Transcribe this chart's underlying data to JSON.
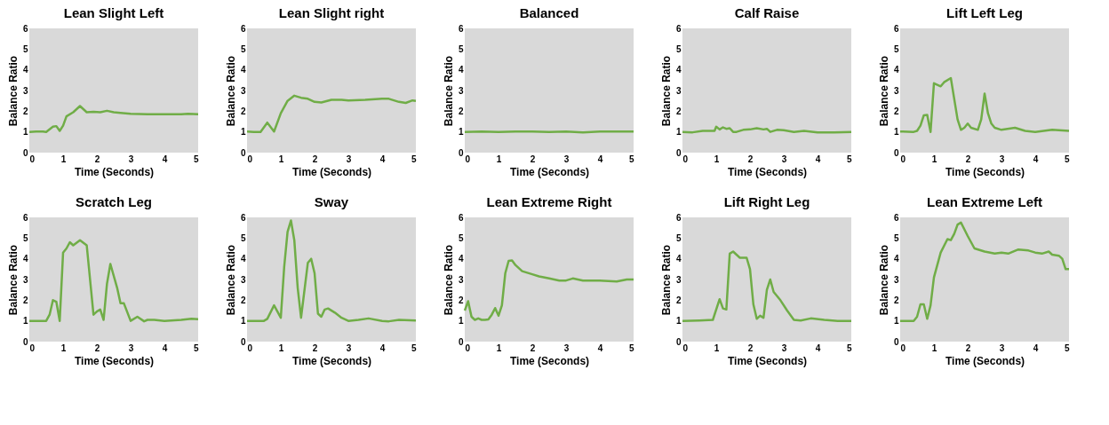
{
  "chart_data": [
    {
      "type": "line",
      "title": "Lean Slight Left",
      "xlabel": "Time (Seconds)",
      "ylabel": "Balance Ratio",
      "xlim": [
        0,
        5
      ],
      "xticks": [
        0,
        1,
        2,
        3,
        4,
        5
      ],
      "ylim": [
        0,
        6
      ],
      "yticks": [
        0,
        1,
        2,
        3,
        4,
        5,
        6
      ],
      "grid": false,
      "marker": "none",
      "line_style": "solid",
      "series": [
        {
          "color": "#70ad47",
          "x": [
            0,
            0.2,
            0.4,
            0.5,
            0.7,
            0.8,
            0.9,
            1.0,
            1.1,
            1.3,
            1.5,
            1.7,
            1.9,
            2.1,
            2.3,
            2.5,
            2.7,
            3.0,
            3.5,
            4.0,
            4.5,
            4.7,
            5.0
          ],
          "values": [
            1.0,
            1.02,
            1.02,
            1.0,
            1.25,
            1.28,
            1.05,
            1.3,
            1.75,
            1.95,
            2.25,
            1.95,
            1.97,
            1.95,
            2.02,
            1.95,
            1.92,
            1.88,
            1.85,
            1.85,
            1.85,
            1.87,
            1.85
          ]
        }
      ]
    },
    {
      "type": "line",
      "title": "Lean Slight right",
      "xlabel": "Time (Seconds)",
      "ylabel": "Balance Ratio",
      "xlim": [
        0,
        5
      ],
      "xticks": [
        0,
        1,
        2,
        3,
        4,
        5
      ],
      "ylim": [
        0,
        6
      ],
      "yticks": [
        0,
        1,
        2,
        3,
        4,
        5,
        6
      ],
      "grid": false,
      "marker": "none",
      "line_style": "solid",
      "series": [
        {
          "color": "#70ad47",
          "x": [
            0,
            0.2,
            0.4,
            0.6,
            0.8,
            1.0,
            1.2,
            1.4,
            1.6,
            1.8,
            2.0,
            2.2,
            2.5,
            2.8,
            3.0,
            3.5,
            4.0,
            4.2,
            4.5,
            4.7,
            4.9,
            5.0
          ],
          "values": [
            1.02,
            1.0,
            1.0,
            1.45,
            1.02,
            1.9,
            2.5,
            2.75,
            2.65,
            2.6,
            2.45,
            2.42,
            2.55,
            2.55,
            2.52,
            2.55,
            2.6,
            2.6,
            2.45,
            2.4,
            2.52,
            2.5
          ]
        }
      ]
    },
    {
      "type": "line",
      "title": "Balanced",
      "xlabel": "Time (Seconds)",
      "ylabel": "Balance Ratio",
      "xlim": [
        0,
        5
      ],
      "xticks": [
        0,
        1,
        2,
        3,
        4,
        5
      ],
      "ylim": [
        0,
        6
      ],
      "yticks": [
        0,
        1,
        2,
        3,
        4,
        5,
        6
      ],
      "grid": false,
      "marker": "none",
      "line_style": "solid",
      "series": [
        {
          "color": "#70ad47",
          "x": [
            0,
            0.5,
            1,
            1.5,
            2,
            2.5,
            3,
            3.5,
            4,
            4.5,
            5
          ],
          "values": [
            1.0,
            1.02,
            1.0,
            1.02,
            1.02,
            1.0,
            1.02,
            0.98,
            1.02,
            1.02,
            1.02
          ]
        }
      ]
    },
    {
      "type": "line",
      "title": "Calf Raise",
      "xlabel": "Time (Seconds)",
      "ylabel": "Balance Ratio",
      "xlim": [
        0,
        5
      ],
      "xticks": [
        0,
        1,
        2,
        3,
        4,
        5
      ],
      "ylim": [
        0,
        6
      ],
      "yticks": [
        0,
        1,
        2,
        3,
        4,
        5,
        6
      ],
      "grid": false,
      "marker": "none",
      "line_style": "solid",
      "series": [
        {
          "color": "#70ad47",
          "x": [
            0,
            0.3,
            0.6,
            0.8,
            0.95,
            1.0,
            1.1,
            1.2,
            1.3,
            1.4,
            1.5,
            1.6,
            1.8,
            2.0,
            2.2,
            2.4,
            2.5,
            2.6,
            2.8,
            3.0,
            3.3,
            3.6,
            4.0,
            4.5,
            5.0
          ],
          "values": [
            1.0,
            0.98,
            1.05,
            1.05,
            1.05,
            1.25,
            1.12,
            1.22,
            1.15,
            1.18,
            1.0,
            1.0,
            1.1,
            1.12,
            1.18,
            1.12,
            1.15,
            1.0,
            1.1,
            1.08,
            1.0,
            1.05,
            0.98,
            0.98,
            1.0
          ]
        }
      ]
    },
    {
      "type": "line",
      "title": "Lift Left Leg",
      "xlabel": "Time (Seconds)",
      "ylabel": "Balance Ratio",
      "xlim": [
        0,
        5
      ],
      "xticks": [
        0,
        1,
        2,
        3,
        4,
        5
      ],
      "ylim": [
        0,
        6
      ],
      "yticks": [
        0,
        1,
        2,
        3,
        4,
        5,
        6
      ],
      "grid": false,
      "marker": "none",
      "line_style": "solid",
      "series": [
        {
          "color": "#70ad47",
          "x": [
            0,
            0.4,
            0.5,
            0.6,
            0.7,
            0.8,
            0.9,
            1.0,
            1.2,
            1.3,
            1.5,
            1.7,
            1.8,
            1.9,
            2.0,
            2.1,
            2.3,
            2.4,
            2.5,
            2.6,
            2.7,
            2.8,
            3.0,
            3.4,
            3.7,
            4.0,
            4.5,
            5.0
          ],
          "values": [
            1.02,
            1.0,
            1.05,
            1.3,
            1.8,
            1.82,
            1.0,
            3.35,
            3.2,
            3.4,
            3.6,
            1.6,
            1.1,
            1.2,
            1.4,
            1.2,
            1.1,
            1.6,
            2.85,
            1.9,
            1.4,
            1.2,
            1.1,
            1.2,
            1.05,
            1.0,
            1.1,
            1.05
          ]
        }
      ]
    },
    {
      "type": "line",
      "title": "Scratch Leg",
      "xlabel": "Time (Seconds)",
      "ylabel": "Balance Ratio",
      "xlim": [
        0,
        5
      ],
      "xticks": [
        0,
        1,
        2,
        3,
        4,
        5
      ],
      "ylim": [
        0,
        6
      ],
      "yticks": [
        0,
        1,
        2,
        3,
        4,
        5,
        6
      ],
      "grid": false,
      "marker": "none",
      "line_style": "solid",
      "series": [
        {
          "color": "#70ad47",
          "x": [
            0,
            0.5,
            0.6,
            0.7,
            0.8,
            0.9,
            1.0,
            1.1,
            1.2,
            1.3,
            1.5,
            1.7,
            1.9,
            2.0,
            2.1,
            2.2,
            2.3,
            2.4,
            2.6,
            2.7,
            2.8,
            3.0,
            3.2,
            3.4,
            3.5,
            3.7,
            4.0,
            4.5,
            4.8,
            5.0
          ],
          "values": [
            1.0,
            1.0,
            1.3,
            2.0,
            1.92,
            1.0,
            4.3,
            4.5,
            4.8,
            4.65,
            4.9,
            4.65,
            1.3,
            1.45,
            1.55,
            1.05,
            2.8,
            3.75,
            2.6,
            1.85,
            1.85,
            1.0,
            1.2,
            0.98,
            1.05,
            1.05,
            1.0,
            1.05,
            1.1,
            1.08
          ]
        }
      ]
    },
    {
      "type": "line",
      "title": "Sway",
      "xlabel": "Time (Seconds)",
      "ylabel": "Balance Ratio",
      "xlim": [
        0,
        5
      ],
      "xticks": [
        0,
        1,
        2,
        3,
        4,
        5
      ],
      "ylim": [
        0,
        6
      ],
      "yticks": [
        0,
        1,
        2,
        3,
        4,
        5,
        6
      ],
      "grid": false,
      "marker": "none",
      "line_style": "solid",
      "series": [
        {
          "color": "#70ad47",
          "x": [
            0,
            0.5,
            0.6,
            0.8,
            1.0,
            1.1,
            1.2,
            1.3,
            1.4,
            1.5,
            1.6,
            1.8,
            1.9,
            2.0,
            2.1,
            2.2,
            2.3,
            2.4,
            2.6,
            2.8,
            3.0,
            3.3,
            3.6,
            4.0,
            4.2,
            4.5,
            5.0
          ],
          "values": [
            1.0,
            1.0,
            1.1,
            1.75,
            1.15,
            3.6,
            5.3,
            5.85,
            4.9,
            2.6,
            1.15,
            3.8,
            4.0,
            3.3,
            1.35,
            1.2,
            1.55,
            1.6,
            1.4,
            1.15,
            1.0,
            1.05,
            1.12,
            1.0,
            0.98,
            1.05,
            1.02
          ]
        }
      ]
    },
    {
      "type": "line",
      "title": "Lean Extreme Right",
      "xlabel": "Time (Seconds)",
      "ylabel": "Balance Ratio",
      "xlim": [
        0,
        5
      ],
      "xticks": [
        0,
        1,
        2,
        3,
        4,
        5
      ],
      "ylim": [
        0,
        6
      ],
      "yticks": [
        0,
        1,
        2,
        3,
        4,
        5,
        6
      ],
      "grid": false,
      "marker": "none",
      "line_style": "solid",
      "series": [
        {
          "color": "#70ad47",
          "x": [
            0,
            0.1,
            0.2,
            0.3,
            0.4,
            0.5,
            0.6,
            0.7,
            0.8,
            0.9,
            1.0,
            1.1,
            1.2,
            1.3,
            1.4,
            1.5,
            1.7,
            2.0,
            2.2,
            2.5,
            2.8,
            3.0,
            3.2,
            3.5,
            4.0,
            4.5,
            4.8,
            5.0
          ],
          "values": [
            1.5,
            1.95,
            1.2,
            1.05,
            1.12,
            1.05,
            1.05,
            1.07,
            1.3,
            1.62,
            1.25,
            1.75,
            3.3,
            3.9,
            3.92,
            3.7,
            3.4,
            3.25,
            3.15,
            3.05,
            2.95,
            2.95,
            3.05,
            2.95,
            2.95,
            2.9,
            3.0,
            3.0
          ]
        }
      ]
    },
    {
      "type": "line",
      "title": "Lift Right Leg",
      "xlabel": "Time (Seconds)",
      "ylabel": "Balance Ratio",
      "xlim": [
        0,
        5
      ],
      "xticks": [
        0,
        1,
        2,
        3,
        4,
        5
      ],
      "ylim": [
        0,
        6
      ],
      "yticks": [
        0,
        1,
        2,
        3,
        4,
        5,
        6
      ],
      "grid": false,
      "marker": "none",
      "line_style": "solid",
      "series": [
        {
          "color": "#70ad47",
          "x": [
            0,
            0.5,
            0.9,
            1.1,
            1.2,
            1.3,
            1.4,
            1.5,
            1.7,
            1.9,
            2.0,
            2.1,
            2.2,
            2.3,
            2.4,
            2.5,
            2.6,
            2.7,
            2.9,
            3.1,
            3.3,
            3.5,
            3.8,
            4.2,
            4.6,
            5.0
          ],
          "values": [
            1.0,
            1.02,
            1.05,
            2.05,
            1.6,
            1.55,
            4.25,
            4.35,
            4.05,
            4.05,
            3.5,
            1.8,
            1.1,
            1.25,
            1.15,
            2.5,
            3.0,
            2.4,
            2.0,
            1.5,
            1.05,
            1.02,
            1.12,
            1.05,
            1.0,
            1.0
          ]
        }
      ]
    },
    {
      "type": "line",
      "title": "Lean Extreme Left",
      "xlabel": "Time (Seconds)",
      "ylabel": "Balance Ratio",
      "xlim": [
        0,
        5
      ],
      "xticks": [
        0,
        1,
        2,
        3,
        4,
        5
      ],
      "ylim": [
        0,
        6
      ],
      "yticks": [
        0,
        1,
        2,
        3,
        4,
        5,
        6
      ],
      "grid": false,
      "marker": "none",
      "line_style": "solid",
      "series": [
        {
          "color": "#70ad47",
          "x": [
            0,
            0.4,
            0.5,
            0.6,
            0.7,
            0.8,
            0.9,
            1.0,
            1.2,
            1.4,
            1.5,
            1.6,
            1.7,
            1.8,
            2.0,
            2.2,
            2.5,
            2.8,
            3.0,
            3.2,
            3.5,
            3.8,
            4.0,
            4.2,
            4.4,
            4.5,
            4.7,
            4.8,
            4.9,
            5.0
          ],
          "values": [
            1.0,
            1.0,
            1.2,
            1.8,
            1.8,
            1.1,
            1.75,
            3.1,
            4.3,
            4.95,
            4.9,
            5.2,
            5.65,
            5.75,
            5.1,
            4.5,
            4.35,
            4.25,
            4.3,
            4.25,
            4.45,
            4.4,
            4.3,
            4.25,
            4.35,
            4.2,
            4.15,
            4.0,
            3.5,
            3.5
          ]
        }
      ]
    }
  ]
}
